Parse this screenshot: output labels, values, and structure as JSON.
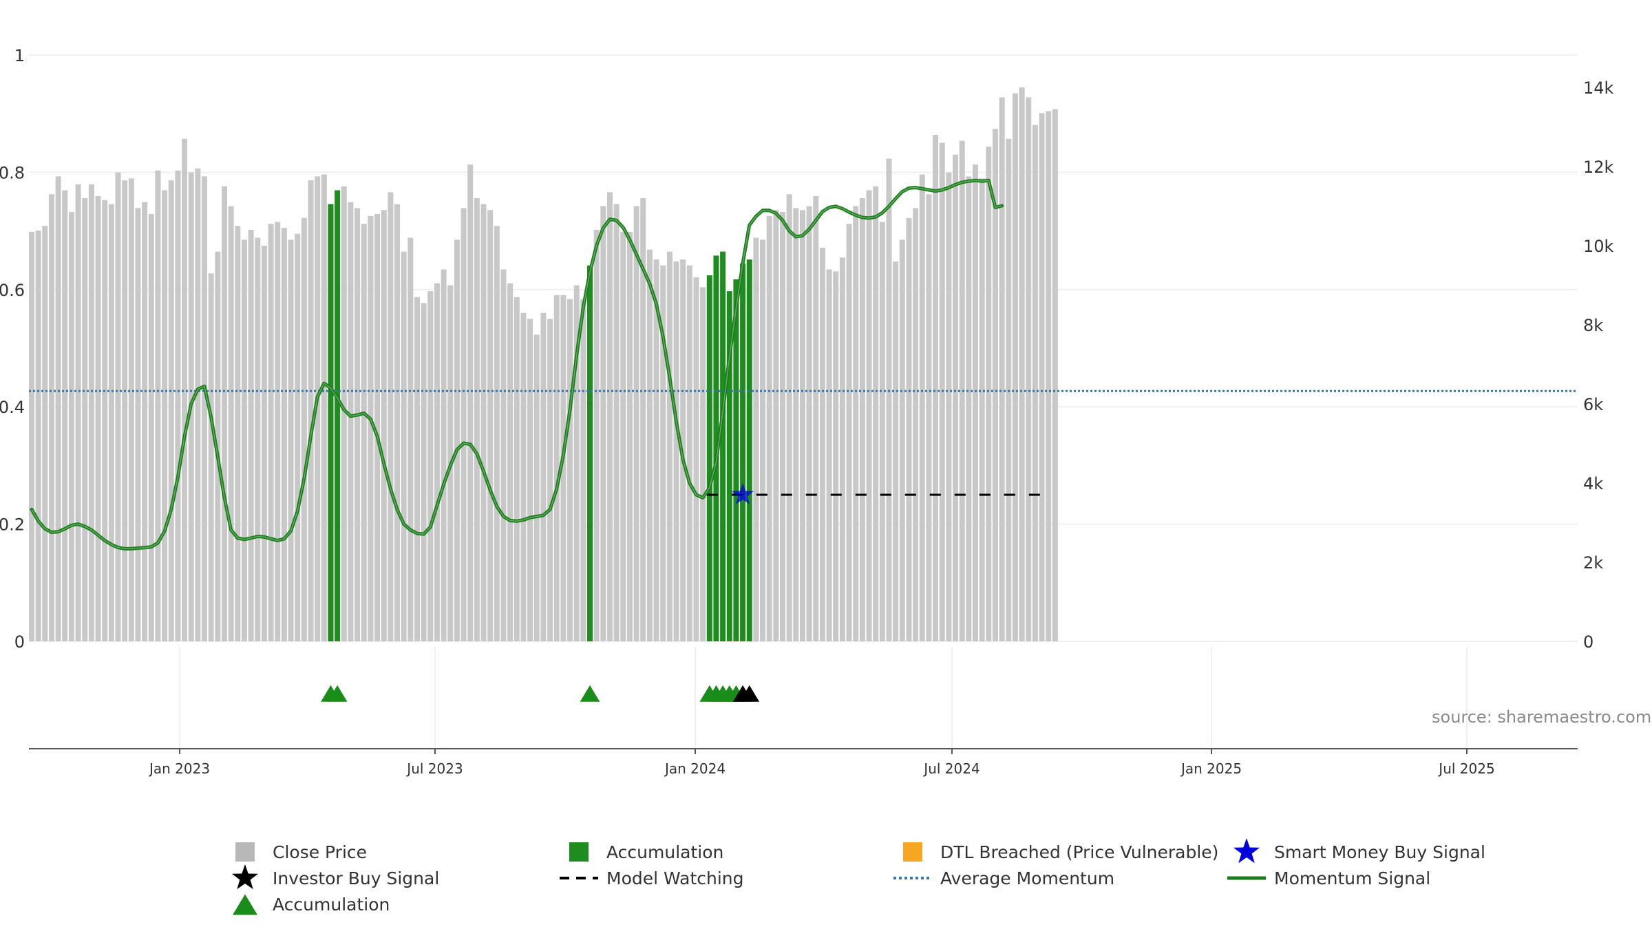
{
  "chart_data": {
    "type": "bar",
    "title": "",
    "source": "source: sharemaestro.com",
    "x_ticks": [
      "Jan 2023",
      "Jul 2023",
      "Jan 2024",
      "Jul 2024",
      "Jan 2025",
      "Jul 2025"
    ],
    "left_axis": {
      "ticks": [
        "0",
        "0.2",
        "0.4",
        "0.6",
        "0.8",
        "1"
      ],
      "ylim": [
        0,
        1
      ]
    },
    "right_axis": {
      "ticks": [
        "0",
        "2k",
        "4k",
        "6k",
        "8k",
        "10k",
        "12k",
        "14k"
      ],
      "ylim": [
        0,
        14000
      ]
    },
    "grid": true,
    "legend_position": "bottom",
    "colors": {
      "close_price": "#c8c8c8",
      "accumulation": "#1e8c1e",
      "momentum": "#1a7d1a",
      "average_momentum": "#3a76a8",
      "model_watching": "#000000",
      "smart_money": "#0000dd",
      "investor_buy": "#000000",
      "dtl": "#f5a623"
    },
    "close_price": [
      10350,
      10380,
      10500,
      11300,
      11750,
      11400,
      10850,
      11550,
      11200,
      11550,
      11250,
      11150,
      11050,
      11850,
      11650,
      11700,
      10950,
      11100,
      10800,
      11900,
      11400,
      11650,
      11900,
      12700,
      11850,
      11950,
      11750,
      9300,
      9850,
      11500,
      11000,
      10500,
      10150,
      10400,
      10200,
      10000,
      10550,
      10600,
      10450,
      10150,
      10300,
      10700,
      11650,
      11750,
      11800,
      11050,
      11400,
      11500,
      11100,
      10950,
      10550,
      10750,
      10800,
      10900,
      11350,
      11050,
      9850,
      10200,
      8700,
      8550,
      8850,
      9050,
      9400,
      9000,
      10150,
      10950,
      12050,
      11200,
      11050,
      10900,
      10500,
      9400,
      9050,
      8700,
      8300,
      8150,
      7750,
      8300,
      8150,
      8750,
      8750,
      8650,
      9000,
      8650,
      9500,
      10400,
      11000,
      11350,
      11050,
      10350,
      10350,
      11000,
      11200,
      9900,
      9650,
      9500,
      9850,
      9600,
      9650,
      9500,
      9200,
      8950,
      9250,
      9750,
      9850,
      8850,
      9150,
      9550,
      9650,
      10200,
      10150,
      10750,
      10900,
      10850,
      11300,
      10950,
      10900,
      11000,
      11250,
      9950,
      9400,
      9350,
      9700,
      10550,
      11000,
      11200,
      11400,
      11500,
      10600,
      12200,
      9600,
      10150,
      10700,
      10950,
      11800,
      11300,
      12800,
      12600,
      11850,
      12300,
      12650,
      11750,
      12050,
      11700,
      12500,
      12950,
      13750,
      12700,
      13850,
      14000,
      13750,
      13050,
      13350,
      13400,
      13450
    ],
    "accumulation_weeks": [
      45,
      46,
      84,
      102,
      103,
      104,
      105,
      106,
      107,
      108
    ],
    "momentum_signal": [
      0.225,
      0.205,
      0.192,
      0.186,
      0.187,
      0.192,
      0.198,
      0.2,
      0.196,
      0.19,
      0.181,
      0.172,
      0.165,
      0.16,
      0.158,
      0.158,
      0.159,
      0.16,
      0.161,
      0.168,
      0.188,
      0.225,
      0.28,
      0.35,
      0.405,
      0.43,
      0.435,
      0.382,
      0.315,
      0.245,
      0.19,
      0.176,
      0.174,
      0.176,
      0.179,
      0.178,
      0.175,
      0.172,
      0.175,
      0.188,
      0.222,
      0.278,
      0.35,
      0.417,
      0.44,
      0.432,
      0.415,
      0.395,
      0.384,
      0.386,
      0.389,
      0.379,
      0.35,
      0.303,
      0.26,
      0.225,
      0.2,
      0.19,
      0.184,
      0.183,
      0.195,
      0.232,
      0.268,
      0.3,
      0.327,
      0.338,
      0.336,
      0.32,
      0.29,
      0.258,
      0.23,
      0.213,
      0.206,
      0.205,
      0.207,
      0.211,
      0.213,
      0.215,
      0.225,
      0.26,
      0.318,
      0.395,
      0.488,
      0.57,
      0.63,
      0.675,
      0.705,
      0.72,
      0.718,
      0.706,
      0.685,
      0.66,
      0.635,
      0.61,
      0.575,
      0.52,
      0.45,
      0.375,
      0.31,
      0.27,
      0.25,
      0.245,
      0.262,
      0.306,
      0.392,
      0.486,
      0.568,
      0.645,
      0.71,
      0.725,
      0.735,
      0.735,
      0.73,
      0.718,
      0.7,
      0.69,
      0.692,
      0.703,
      0.718,
      0.733,
      0.74,
      0.742,
      0.738,
      0.732,
      0.727,
      0.723,
      0.722,
      0.724,
      0.731,
      0.742,
      0.755,
      0.767,
      0.773,
      0.774,
      0.772,
      0.77,
      0.768,
      0.77,
      0.774,
      0.779,
      0.783,
      0.785,
      0.786,
      0.785,
      0.786,
      0.74,
      0.743
    ],
    "average_momentum": 0.427,
    "model_watching": {
      "level": 0.25,
      "start_week": 102
    },
    "smart_money_buy_signal": [
      {
        "week": 107,
        "value": 0.25
      }
    ],
    "accumulation_markers_weeks": [
      45,
      46,
      84,
      102,
      103,
      104,
      105,
      106
    ],
    "investor_buy_markers_weeks": [
      107,
      108
    ],
    "legend": [
      {
        "label": "Close Price",
        "symbol": "square-gray"
      },
      {
        "label": "Accumulation",
        "symbol": "square-green"
      },
      {
        "label": "DTL Breached (Price Vulnerable)",
        "symbol": "square-orange"
      },
      {
        "label": "Smart Money Buy Signal",
        "symbol": "star-blue"
      },
      {
        "label": "Investor Buy Signal",
        "symbol": "star-black"
      },
      {
        "label": "Model Watching",
        "symbol": "dash-black"
      },
      {
        "label": "Average Momentum",
        "symbol": "dot-blue"
      },
      {
        "label": "Momentum Signal",
        "symbol": "line-green"
      },
      {
        "label": "Accumulation",
        "symbol": "triangle-green"
      }
    ]
  }
}
